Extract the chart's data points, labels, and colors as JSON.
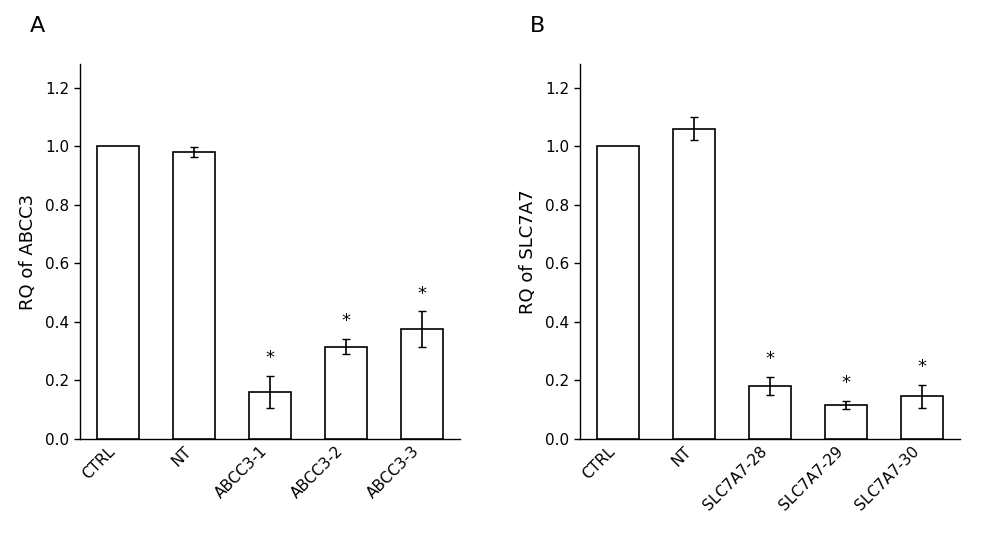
{
  "panel_A": {
    "label": "A",
    "categories": [
      "CTRL",
      "NT",
      "ABCC3-1",
      "ABCC3-2",
      "ABCC3-3"
    ],
    "values": [
      1.0,
      0.98,
      0.16,
      0.315,
      0.375
    ],
    "errors": [
      0.0,
      0.018,
      0.055,
      0.025,
      0.06
    ],
    "significance": [
      false,
      false,
      true,
      true,
      true
    ],
    "ylabel": "RQ of ABCC3",
    "ylim": [
      0,
      1.28
    ],
    "yticks": [
      0.0,
      0.2,
      0.4,
      0.6,
      0.8,
      1.0,
      1.2
    ]
  },
  "panel_B": {
    "label": "B",
    "categories": [
      "CTRL",
      "NT",
      "SLC7A7-28",
      "SLC7A7-29",
      "SLC7A7-30"
    ],
    "values": [
      1.0,
      1.06,
      0.18,
      0.115,
      0.145
    ],
    "errors": [
      0.0,
      0.04,
      0.03,
      0.015,
      0.04
    ],
    "significance": [
      false,
      false,
      true,
      true,
      true
    ],
    "ylabel": "RQ of SLC7A7",
    "ylim": [
      0,
      1.28
    ],
    "yticks": [
      0.0,
      0.2,
      0.4,
      0.6,
      0.8,
      1.0,
      1.2
    ]
  },
  "bar_color": "#ffffff",
  "bar_edgecolor": "#000000",
  "bar_linewidth": 1.2,
  "bar_width": 0.55,
  "error_capsize": 3,
  "error_linewidth": 1.2,
  "error_color": "#000000",
  "star_fontsize": 13,
  "panel_label_fontsize": 16,
  "tick_fontsize": 11,
  "ylabel_fontsize": 13,
  "background_color": "#ffffff",
  "spine_linewidth": 1.0
}
